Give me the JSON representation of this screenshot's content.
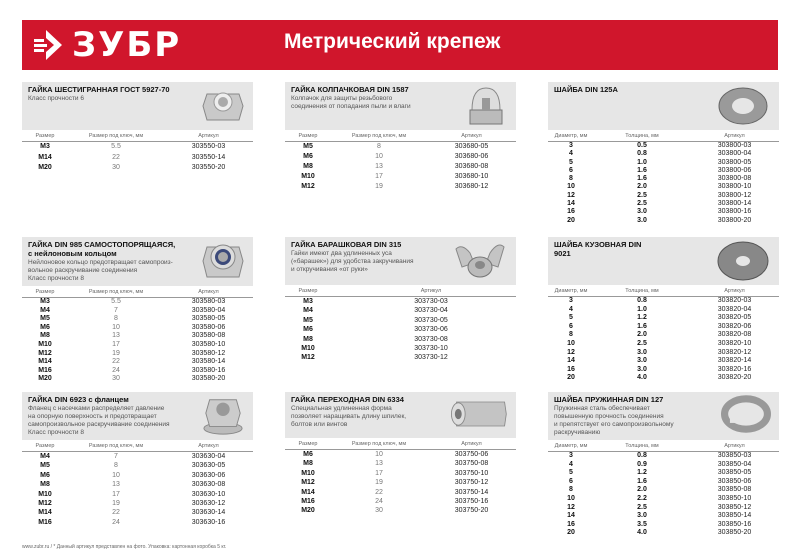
{
  "header": {
    "brand": "ЗУБР",
    "title": "Метрический крепеж",
    "brand_color": "#d0162c"
  },
  "sections": [
    {
      "id": "hex-nut",
      "title": "ГАЙКА ШЕСТИГРАННАЯ ГОСТ 5927-70",
      "desc": [
        "Класс прочности 6"
      ],
      "icon": "hex-nut-icon",
      "columns": [
        "Размер",
        "Размер под ключ, мм",
        "Артикул"
      ],
      "rows": [
        [
          "M3",
          "5.5",
          "303550-03"
        ],
        [
          "M14",
          "22",
          "303550-14"
        ],
        [
          "M20",
          "30",
          "303550-20"
        ]
      ]
    },
    {
      "id": "cap-nut",
      "title": "ГАЙКА КОЛПАЧКОВАЯ DIN 1587",
      "desc": [
        "Колпачок для защиты резьбового",
        "соединения от попадания пыли и влаги"
      ],
      "icon": "cap-nut-icon",
      "columns": [
        "Размер",
        "Размер под ключ, мм",
        "Артикул"
      ],
      "rows": [
        [
          "M5",
          "8",
          "303680-05"
        ],
        [
          "M6",
          "10",
          "303680-06"
        ],
        [
          "M8",
          "13",
          "303680-08"
        ],
        [
          "M10",
          "17",
          "303680-10"
        ],
        [
          "M12",
          "19",
          "303680-12"
        ]
      ]
    },
    {
      "id": "washer-125a",
      "title": "ШАЙБА DIN 125A",
      "desc": [],
      "icon": "washer-icon",
      "columns": [
        "Диаметр, мм",
        "Толщина, мм",
        "Артикул"
      ],
      "rows": [
        [
          "3",
          "0.5",
          "303800-03"
        ],
        [
          "4",
          "0.8",
          "303800-04"
        ],
        [
          "5",
          "1.0",
          "303800-05"
        ],
        [
          "6",
          "1.6",
          "303800-06"
        ],
        [
          "8",
          "1.6",
          "303800-08"
        ],
        [
          "10",
          "2.0",
          "303800-10"
        ],
        [
          "12",
          "2.5",
          "303800-12"
        ],
        [
          "14",
          "2.5",
          "303800-14"
        ],
        [
          "16",
          "3.0",
          "303800-16"
        ],
        [
          "20",
          "3.0",
          "303800-20"
        ]
      ]
    },
    {
      "id": "lock-nut",
      "title": "ГАЙКА DIN 985 САМОСТОПОРЯЩАЯСЯ, с нейлоновым кольцом",
      "desc": [
        "Нейлоновое кольцо предотвращает самопроиз-",
        "вольное раскручивание соединения",
        "Класс прочности 8"
      ],
      "icon": "nylon-lock-nut-icon",
      "columns": [
        "Размер",
        "Размер под ключ, мм",
        "Артикул"
      ],
      "rows": [
        [
          "M3",
          "5.5",
          "303580-03"
        ],
        [
          "M4",
          "7",
          "303580-04"
        ],
        [
          "M5",
          "8",
          "303580-05"
        ],
        [
          "M6",
          "10",
          "303580-06"
        ],
        [
          "M8",
          "13",
          "303580-08"
        ],
        [
          "M10",
          "17",
          "303580-10"
        ],
        [
          "M12",
          "19",
          "303580-12"
        ],
        [
          "M14",
          "22",
          "303580-14"
        ],
        [
          "M16",
          "24",
          "303580-16"
        ],
        [
          "M20",
          "30",
          "303580-20"
        ]
      ]
    },
    {
      "id": "wing-nut",
      "title": "ГАЙКА БАРАШКОВАЯ DIN 315",
      "desc": [
        "Гайки имеют два удлиненных уса",
        "(«барашек») для удобства закручивания",
        "и откручивания «от руки»"
      ],
      "icon": "wing-nut-icon",
      "columns": [
        "Размер",
        "Артикул"
      ],
      "rows": [
        [
          "M3",
          "303730-03"
        ],
        [
          "M4",
          "303730-04"
        ],
        [
          "M5",
          "303730-05"
        ],
        [
          "M6",
          "303730-06"
        ],
        [
          "M8",
          "303730-08"
        ],
        [
          "M10",
          "303730-10"
        ],
        [
          "M12",
          "303730-12"
        ]
      ]
    },
    {
      "id": "body-washer",
      "title": "ШАЙБА КУЗОВНАЯ DIN 9021",
      "desc": [],
      "icon": "body-washer-icon",
      "columns": [
        "Диаметр, мм",
        "Толщина, мм",
        "Артикул"
      ],
      "rows": [
        [
          "3",
          "0.8",
          "303820-03"
        ],
        [
          "4",
          "1.0",
          "303820-04"
        ],
        [
          "5",
          "1.2",
          "303820-05"
        ],
        [
          "6",
          "1.6",
          "303820-06"
        ],
        [
          "8",
          "2.0",
          "303820-08"
        ],
        [
          "10",
          "2.5",
          "303820-10"
        ],
        [
          "12",
          "3.0",
          "303820-12"
        ],
        [
          "14",
          "3.0",
          "303820-14"
        ],
        [
          "16",
          "3.0",
          "303820-16"
        ],
        [
          "20",
          "4.0",
          "303820-20"
        ]
      ]
    },
    {
      "id": "flange-nut",
      "title": "ГАЙКА DIN 6923 с фланцем",
      "desc": [
        "Фланец с насечками распределяет давление",
        "на опорную поверхность и предотвращает",
        "самопроизвольное раскручивание соединения",
        "Класс прочности 8"
      ],
      "icon": "flange-nut-icon",
      "columns": [
        "Размер",
        "Размер под ключ, мм",
        "Артикул"
      ],
      "rows": [
        [
          "M4",
          "7",
          "303630-04"
        ],
        [
          "M5",
          "8",
          "303630-05"
        ],
        [
          "M6",
          "10",
          "303630-06"
        ],
        [
          "M8",
          "13",
          "303630-08"
        ],
        [
          "M10",
          "17",
          "303630-10"
        ],
        [
          "M12",
          "19",
          "303630-12"
        ],
        [
          "M14",
          "22",
          "303630-14"
        ],
        [
          "M16",
          "24",
          "303630-16"
        ]
      ]
    },
    {
      "id": "coupling-nut",
      "title": "ГАЙКА ПЕРЕХОДНАЯ DIN 6334",
      "desc": [
        "Специальная удлиненная форма",
        "позволяет наращивать длину шпилек,",
        "болтов или винтов"
      ],
      "icon": "coupling-nut-icon",
      "columns": [
        "Размер",
        "Размер под ключ, мм",
        "Артикул"
      ],
      "rows": [
        [
          "M6",
          "10",
          "303750-06"
        ],
        [
          "M8",
          "13",
          "303750-08"
        ],
        [
          "M10",
          "17",
          "303750-10"
        ],
        [
          "M12",
          "19",
          "303750-12"
        ],
        [
          "M14",
          "22",
          "303750-14"
        ],
        [
          "M16",
          "24",
          "303750-16"
        ],
        [
          "M20",
          "30",
          "303750-20"
        ]
      ]
    },
    {
      "id": "spring-washer",
      "title": "ШАЙБА ПРУЖИННАЯ DIN 127",
      "desc": [
        "Пружинная сталь обеспечивает",
        "повышенную прочность соединения",
        "и препятствует его самопроизвольному",
        "раскручиванию"
      ],
      "icon": "spring-washer-icon",
      "columns": [
        "Диаметр, мм",
        "Толщина, мм",
        "Артикул"
      ],
      "rows": [
        [
          "3",
          "0.8",
          "303850-03"
        ],
        [
          "4",
          "0.9",
          "303850-04"
        ],
        [
          "5",
          "1.2",
          "303850-05"
        ],
        [
          "6",
          "1.6",
          "303850-06"
        ],
        [
          "8",
          "2.0",
          "303850-08"
        ],
        [
          "10",
          "2.2",
          "303850-10"
        ],
        [
          "12",
          "2.5",
          "303850-12"
        ],
        [
          "14",
          "3.0",
          "303850-14"
        ],
        [
          "16",
          "3.5",
          "303850-16"
        ],
        [
          "20",
          "4.0",
          "303850-20"
        ]
      ]
    }
  ],
  "footer": "www.zubr.ru  /  * Данный артикул представлен на фото. Упаковка: картонная коробка 5 кг."
}
